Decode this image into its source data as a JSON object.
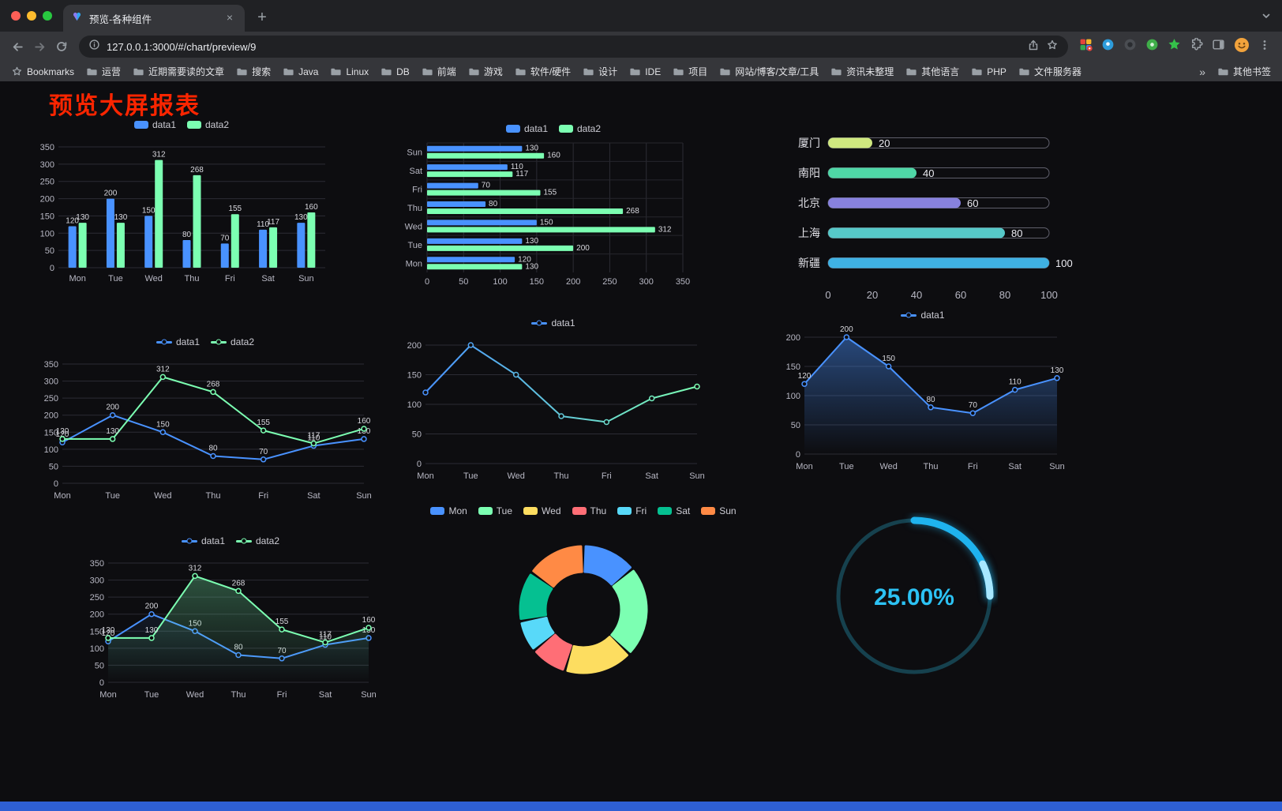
{
  "browser": {
    "tab_title": "预览-各种组件",
    "tab_close_label": "×",
    "new_tab_label": "+",
    "url": "127.0.0.1:3000/#/chart/preview/9",
    "bookmarks_label": "Bookmarks",
    "bookmarks": [
      "运营",
      "近期需要读的文章",
      "搜索",
      "Java",
      "Linux",
      "DB",
      "前端",
      "游戏",
      "软件/硬件",
      "设计",
      "IDE",
      "项目",
      "网站/博客/文章/工具",
      "资讯未整理",
      "其他语言",
      "PHP",
      "文件服务器"
    ],
    "bookmarks_overflow": "»",
    "other_bookmarks": "其他书签"
  },
  "page": {
    "title": "预览大屏报表",
    "title_color": "#fb2500",
    "background": "#0d0d10",
    "footer_color": "#2e5fd3"
  },
  "chart_data": [
    {
      "id": "grouped-bar",
      "type": "bar",
      "legend": [
        "data1",
        "data2"
      ],
      "categories": [
        "Mon",
        "Tue",
        "Wed",
        "Thu",
        "Fri",
        "Sat",
        "Sun"
      ],
      "series": [
        {
          "name": "data1",
          "color": "#4992ff",
          "values": [
            120,
            200,
            150,
            80,
            70,
            110,
            130
          ],
          "labels": true
        },
        {
          "name": "data2",
          "color": "#7cffb2",
          "values": [
            130,
            130,
            312,
            268,
            155,
            117,
            160
          ],
          "labels": true
        }
      ],
      "ylim": [
        0,
        350
      ],
      "ytick": 50
    },
    {
      "id": "grouped-hbar",
      "type": "hbar",
      "legend": [
        "data1",
        "data2"
      ],
      "categories": [
        "Mon",
        "Tue",
        "Wed",
        "Thu",
        "Fri",
        "Sat",
        "Sun"
      ],
      "series": [
        {
          "name": "data1",
          "color": "#4992ff",
          "values": [
            120,
            130,
            150,
            80,
            70,
            110,
            130
          ],
          "labels": true
        },
        {
          "name": "data2",
          "color": "#7cffb2",
          "values": [
            130,
            200,
            312,
            268,
            155,
            117,
            160
          ],
          "labels": true
        }
      ],
      "xlim": [
        0,
        350
      ],
      "xtick": 50
    },
    {
      "id": "capsule-progress",
      "type": "progress",
      "max": 100,
      "axis_ticks": [
        0,
        20,
        40,
        60,
        80,
        100
      ],
      "items": [
        {
          "label": "厦门",
          "value": 20,
          "color": "#cfe87f"
        },
        {
          "label": "南阳",
          "value": 40,
          "color": "#4fd6a6"
        },
        {
          "label": "北京",
          "value": 60,
          "color": "#8781dd"
        },
        {
          "label": "上海",
          "value": 80,
          "color": "#56c8c8"
        },
        {
          "label": "新疆",
          "value": 100,
          "color": "#3fb1e3"
        }
      ]
    },
    {
      "id": "two-line",
      "type": "line",
      "legend": [
        "data1",
        "data2"
      ],
      "categories": [
        "Mon",
        "Tue",
        "Wed",
        "Thu",
        "Fri",
        "Sat",
        "Sun"
      ],
      "series": [
        {
          "name": "data1",
          "color": "#4992ff",
          "values": [
            120,
            200,
            150,
            80,
            70,
            110,
            130
          ],
          "labels": true
        },
        {
          "name": "data2",
          "color": "#7cffb2",
          "values": [
            130,
            130,
            312,
            268,
            155,
            117,
            160
          ],
          "labels": true
        }
      ],
      "ylim": [
        0,
        350
      ],
      "ytick": 50
    },
    {
      "id": "gradient-line",
      "type": "line",
      "legend": [
        "data1"
      ],
      "categories": [
        "Mon",
        "Tue",
        "Wed",
        "Thu",
        "Fri",
        "Sat",
        "Sun"
      ],
      "series": [
        {
          "name": "data1",
          "gradient": [
            "#4992ff",
            "#7cffb2"
          ],
          "values": [
            120,
            200,
            150,
            80,
            70,
            110,
            130
          ],
          "labels": false
        }
      ],
      "ylim": [
        0,
        200
      ],
      "ytick": 50
    },
    {
      "id": "area-line",
      "type": "line",
      "legend": [
        "data1"
      ],
      "categories": [
        "Mon",
        "Tue",
        "Wed",
        "Thu",
        "Fri",
        "Sat",
        "Sun"
      ],
      "series": [
        {
          "name": "data1",
          "color": "#4992ff",
          "values": [
            120,
            200,
            150,
            80,
            70,
            110,
            130
          ],
          "labels": true,
          "area": 0.45
        }
      ],
      "ylim": [
        0,
        200
      ],
      "ytick": 50
    },
    {
      "id": "two-line-area",
      "type": "line",
      "legend": [
        "data1",
        "data2"
      ],
      "categories": [
        "Mon",
        "Tue",
        "Wed",
        "Thu",
        "Fri",
        "Sat",
        "Sun"
      ],
      "series": [
        {
          "name": "data1",
          "color": "#4992ff",
          "values": [
            120,
            200,
            150,
            80,
            70,
            110,
            130
          ],
          "labels": true,
          "area": 0.15
        },
        {
          "name": "data2",
          "color": "#7cffb2",
          "values": [
            130,
            130,
            312,
            268,
            155,
            117,
            160
          ],
          "labels": true,
          "area": 0.32
        }
      ],
      "ylim": [
        0,
        350
      ],
      "ytick": 50
    },
    {
      "id": "donut",
      "type": "donut",
      "legend": [
        "Mon",
        "Tue",
        "Wed",
        "Thu",
        "Fri",
        "Sat",
        "Sun"
      ],
      "values": [
        120,
        200,
        150,
        80,
        70,
        110,
        130
      ],
      "colors": [
        "#4992ff",
        "#7cffb2",
        "#fddd60",
        "#ff6e76",
        "#58d9f9",
        "#05c091",
        "#ff8a45"
      ]
    },
    {
      "id": "ring-progress",
      "type": "gauge",
      "value": 25,
      "max": 100,
      "label": "25.00%",
      "color": "#1fb3ee",
      "cap_color": "#a7e7ff",
      "track_color": "#16414e",
      "text_color": "#2cc2f4"
    }
  ]
}
